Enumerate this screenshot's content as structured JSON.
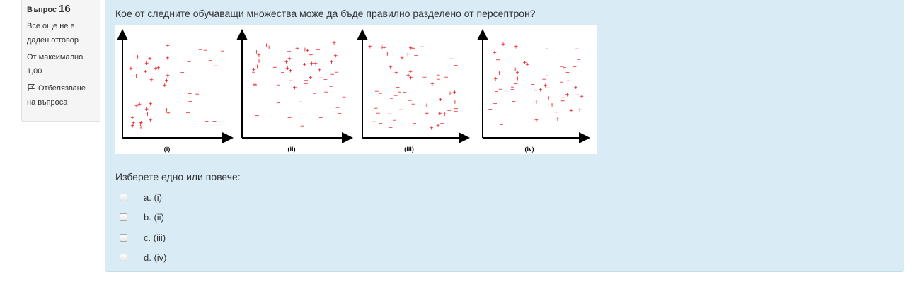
{
  "question_info": {
    "label": "Въпрос",
    "number": "16",
    "state": "Все още не е даден отговор",
    "grade": "От максимално 1,00",
    "flag_label": "Отбелязване на въпроса"
  },
  "question": {
    "text": "Кое от следните обучаващи множества може да бъде правилно разделено от персептрон?",
    "prompt": "Изберете едно или повече:",
    "figure_labels": [
      "(i)",
      "(ii)",
      "(iii)",
      "(iv)"
    ],
    "answers": [
      {
        "prefix": "a.",
        "text": "(i)"
      },
      {
        "prefix": "b.",
        "text": "(ii)"
      },
      {
        "prefix": "c.",
        "text": "(iii)"
      },
      {
        "prefix": "d.",
        "text": "(iv)"
      }
    ]
  },
  "colors": {
    "marker": "#e8101a",
    "panel_bg": "#d9ecf6",
    "info_bg": "#f5f5f5"
  }
}
